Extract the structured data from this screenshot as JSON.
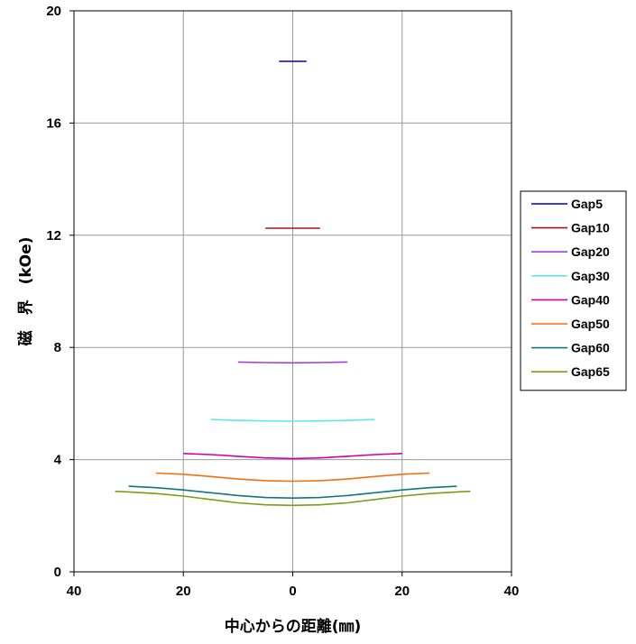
{
  "chart_data": {
    "type": "line",
    "title": "",
    "xlabel": "中心からの距離(㎜)",
    "ylabel": "磁　界　(kOe)",
    "xlim": [
      -40,
      40
    ],
    "ylim": [
      0,
      20
    ],
    "x_ticks": [
      -40,
      -20,
      0,
      20,
      40
    ],
    "x_tick_labels": [
      "40",
      "20",
      "0",
      "20",
      "40"
    ],
    "y_ticks": [
      0,
      4,
      8,
      12,
      16,
      20
    ],
    "y_tick_labels": [
      "0",
      "4",
      "8",
      "12",
      "16",
      "20"
    ],
    "grid": true,
    "legend_position": "right",
    "series": [
      {
        "name": "Gap5",
        "color": "#0000c0",
        "x": [
          -2.5,
          0,
          2.5
        ],
        "y": [
          18.2,
          18.2,
          18.2
        ]
      },
      {
        "name": "Gap10",
        "color": "#a01818",
        "x": [
          -5,
          0,
          5
        ],
        "y": [
          12.25,
          12.25,
          12.25
        ]
      },
      {
        "name": "Gap20",
        "color": "#a040e0",
        "x": [
          -10,
          -5,
          0,
          5,
          10
        ],
        "y": [
          7.48,
          7.46,
          7.45,
          7.46,
          7.48
        ]
      },
      {
        "name": "Gap30",
        "color": "#60e8e8",
        "x": [
          -15,
          -10,
          -5,
          0,
          5,
          10,
          15
        ],
        "y": [
          5.43,
          5.4,
          5.38,
          5.37,
          5.38,
          5.4,
          5.43
        ]
      },
      {
        "name": "Gap40",
        "color": "#d000b0",
        "x": [
          -20,
          -15,
          -10,
          -5,
          0,
          5,
          10,
          15,
          20
        ],
        "y": [
          4.22,
          4.18,
          4.12,
          4.06,
          4.04,
          4.06,
          4.12,
          4.18,
          4.22
        ]
      },
      {
        "name": "Gap50",
        "color": "#f07010",
        "x": [
          -25,
          -20,
          -15,
          -10,
          -5,
          0,
          5,
          10,
          15,
          20,
          25
        ],
        "y": [
          3.52,
          3.48,
          3.4,
          3.31,
          3.25,
          3.23,
          3.25,
          3.31,
          3.4,
          3.48,
          3.52
        ]
      },
      {
        "name": "Gap60",
        "color": "#107878",
        "x": [
          -30,
          -25,
          -20,
          -15,
          -10,
          -5,
          0,
          5,
          10,
          15,
          20,
          25,
          30
        ],
        "y": [
          3.05,
          3.0,
          2.92,
          2.82,
          2.72,
          2.65,
          2.63,
          2.65,
          2.72,
          2.82,
          2.92,
          3.0,
          3.05
        ]
      },
      {
        "name": "Gap65",
        "color": "#78a010",
        "x": [
          -32.5,
          -30,
          -25,
          -20,
          -15,
          -10,
          -5,
          0,
          5,
          10,
          15,
          20,
          25,
          30,
          32.5
        ],
        "y": [
          2.87,
          2.85,
          2.79,
          2.7,
          2.58,
          2.46,
          2.39,
          2.37,
          2.39,
          2.46,
          2.58,
          2.7,
          2.79,
          2.85,
          2.87
        ]
      }
    ]
  }
}
